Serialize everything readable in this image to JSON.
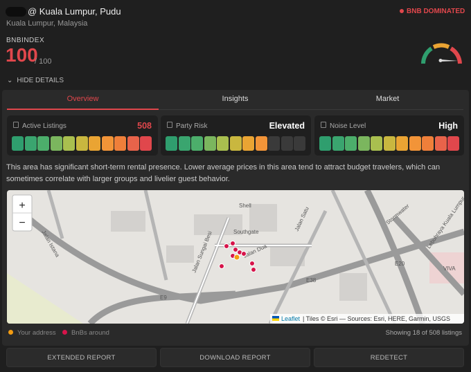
{
  "header": {
    "title": "@ Kuala Lumpur, Pudu",
    "subtitle": "Kuala Lumpur, Malaysia",
    "badge": "BNB DOMINATED",
    "index_label": "BNBINDEX",
    "score": 100,
    "score_max": "/ 100",
    "toggle": "HIDE DETAILS"
  },
  "tabs": [
    "Overview",
    "Insights",
    "Market"
  ],
  "metrics": [
    {
      "label": "Active Listings",
      "value": "508",
      "level": 11
    },
    {
      "label": "Party Risk",
      "value": "Elevated",
      "level": 8
    },
    {
      "label": "Noise Level",
      "value": "High",
      "level": 11
    }
  ],
  "description": "This area has significant short-term rental presence. Lower average prices in this area tend to attract budget travelers, which can sometimes correlate with larger groups and livelier guest behavior.",
  "map": {
    "zoom_in": "+",
    "zoom_out": "−",
    "attribution_link": "Leaflet",
    "attribution": "| Tiles © Esri — Sources: Esri, HERE, Garmin, USGS",
    "labels": [
      "Southgate",
      "Shell",
      "Jalan Sungai Besi",
      "Jalan Dua",
      "Jalan Satu",
      "E38",
      "E9",
      "E20",
      "VIVA",
      "Stormwater",
      "Lebuhraya Kuala Lumpur",
      "Jalan Istana"
    ]
  },
  "legend": [
    "Your address",
    "BnBs around"
  ],
  "showing": "Showing 18 of 508 listings",
  "buttons": [
    "EXTENDED REPORT",
    "DOWNLOAD REPORT",
    "REDETECT"
  ]
}
